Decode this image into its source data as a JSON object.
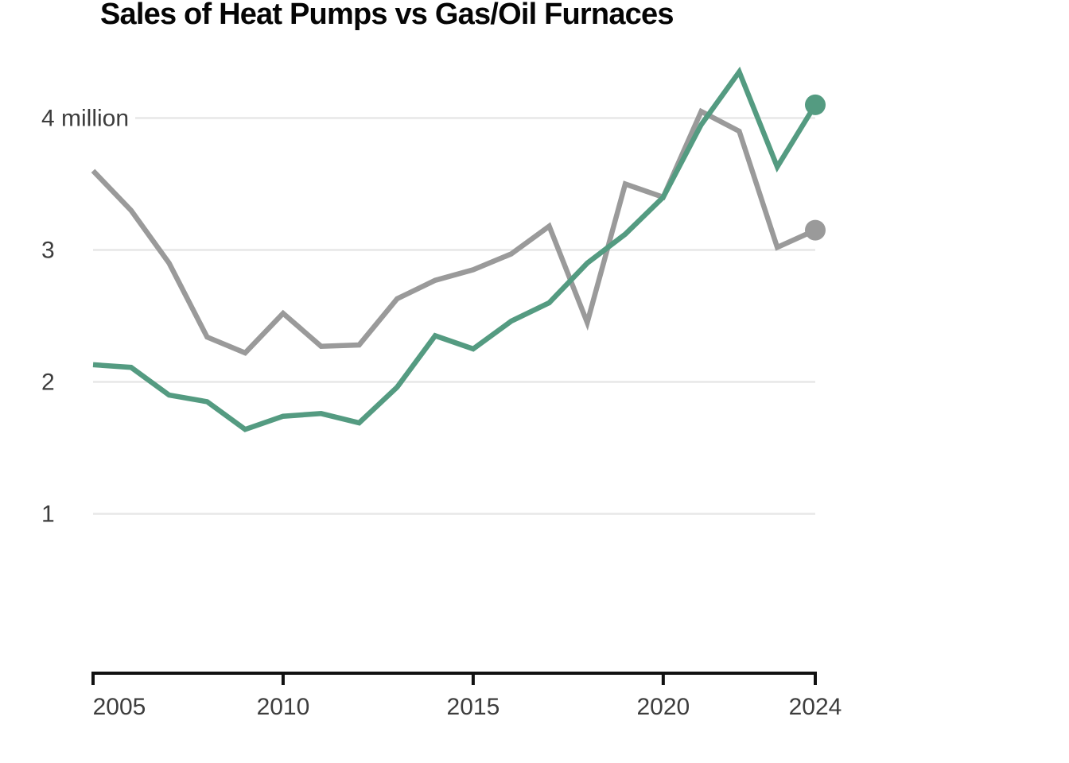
{
  "page": {
    "background": "#ffffff"
  },
  "chart_data": {
    "type": "line",
    "title": "Sales of Heat Pumps vs Gas/Oil Furnaces",
    "x": [
      2005,
      2006,
      2007,
      2008,
      2009,
      2010,
      2011,
      2012,
      2013,
      2014,
      2015,
      2016,
      2017,
      2018,
      2019,
      2020,
      2021,
      2022,
      2023,
      2024
    ],
    "series": [
      {
        "name": "Heat Pumps",
        "color": "#549b81",
        "end_marker": true,
        "values": [
          2.13,
          2.11,
          1.9,
          1.85,
          1.64,
          1.74,
          1.76,
          1.69,
          1.96,
          2.35,
          2.25,
          2.46,
          2.6,
          2.9,
          3.12,
          3.4,
          3.95,
          4.35,
          3.63,
          4.1
        ]
      },
      {
        "name": "Gas/Oil Furnaces",
        "color": "#9a9a9a",
        "end_marker": true,
        "values": [
          3.6,
          3.3,
          2.9,
          2.34,
          2.22,
          2.52,
          2.27,
          2.28,
          2.63,
          2.77,
          2.85,
          2.97,
          3.18,
          2.45,
          3.5,
          3.4,
          4.05,
          3.9,
          3.02,
          3.15
        ]
      }
    ],
    "y_ticks": [
      {
        "value": 4,
        "label": "4 million"
      },
      {
        "value": 3,
        "label": "3"
      },
      {
        "value": 2,
        "label": "2"
      },
      {
        "value": 1,
        "label": "1"
      }
    ],
    "x_tick_years": [
      2005,
      2010,
      2015,
      2020,
      2024
    ],
    "xlim": [
      2005,
      2024
    ],
    "ylim": [
      -0.2,
      4.6
    ],
    "grid": "horizontal",
    "legend": "none",
    "units": "million",
    "colors": {
      "axis": "#111111",
      "gridline": "#e7e7e7",
      "tick_label": "#3d3d3d",
      "title": "#050505"
    }
  }
}
